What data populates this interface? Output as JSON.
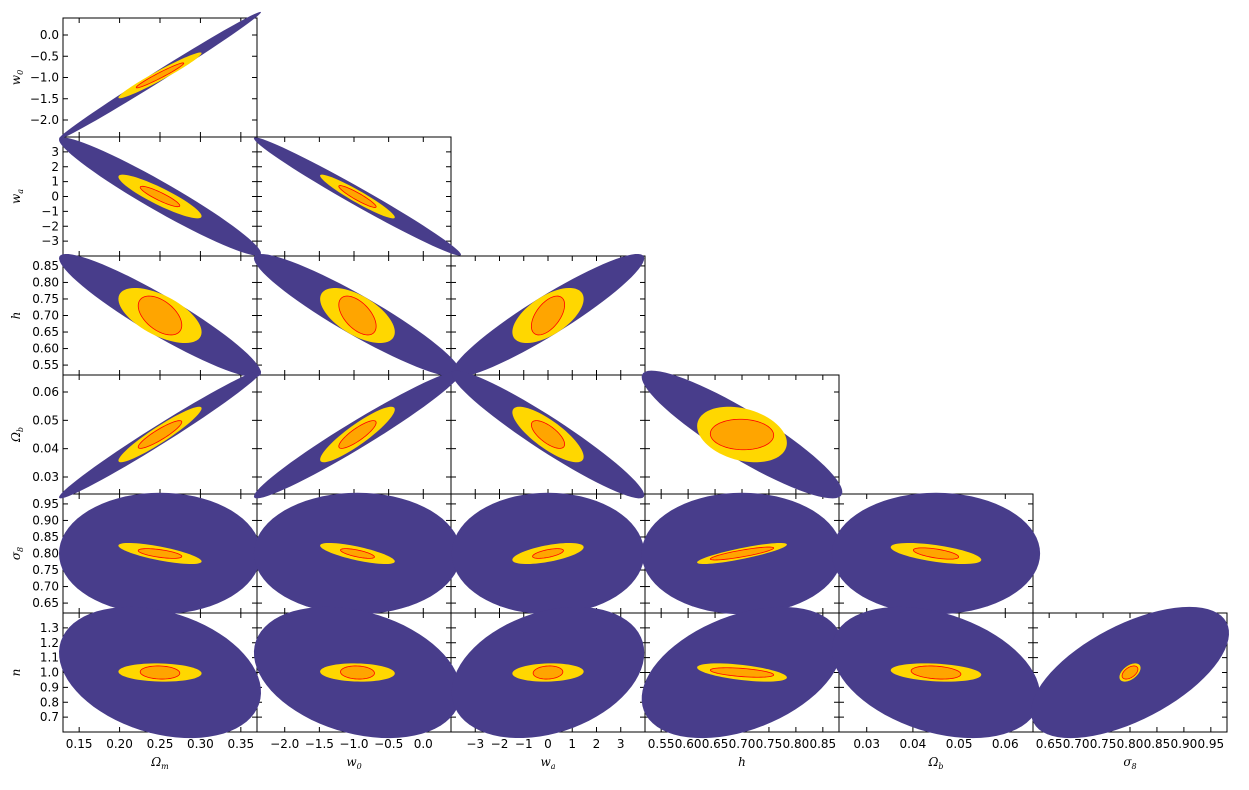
{
  "chart_data": {
    "type": "contour",
    "description_kind": "triangle",
    "colors": {
      "outer": "#483d8b",
      "middle": "#ffd700",
      "inner": "#ffa500",
      "inner_edge": "#ff0000"
    },
    "params": [
      {
        "key": "Om",
        "label": "Ω",
        "sub": "m",
        "range": [
          0.13,
          0.37
        ],
        "ticks": [
          0.15,
          0.2,
          0.25,
          0.3,
          0.35
        ],
        "tick_labels": [
          "0.15",
          "0.20",
          "0.25",
          "0.30",
          "0.35"
        ]
      },
      {
        "key": "w0",
        "label": "w",
        "sub": "0",
        "range": [
          -2.4,
          0.4
        ],
        "ticks": [
          -2.0,
          -1.5,
          -1.0,
          -0.5,
          0.0
        ],
        "tick_labels": [
          "−2.0",
          "−1.5",
          "−1.0",
          "−0.5",
          "0.0"
        ]
      },
      {
        "key": "wa",
        "label": "w",
        "sub": "a",
        "range": [
          -4,
          4
        ],
        "ticks": [
          -3,
          -2,
          -1,
          0,
          1,
          2,
          3
        ],
        "tick_labels": [
          "−3",
          "−2",
          "−1",
          "0",
          "1",
          "2",
          "3"
        ]
      },
      {
        "key": "h",
        "label": "h",
        "sub": "",
        "range": [
          0.52,
          0.88
        ],
        "ticks": [
          0.55,
          0.6,
          0.65,
          0.7,
          0.75,
          0.8,
          0.85
        ],
        "tick_labels": [
          "0.55",
          "0.60",
          "0.65",
          "0.70",
          "0.75",
          "0.80",
          "0.85"
        ]
      },
      {
        "key": "Ob",
        "label": "Ω",
        "sub": "b",
        "range": [
          0.024,
          0.066
        ],
        "ticks": [
          0.03,
          0.04,
          0.05,
          0.06
        ],
        "tick_labels": [
          "0.03",
          "0.04",
          "0.05",
          "0.06"
        ]
      },
      {
        "key": "s8",
        "label": "σ",
        "sub": "8",
        "range": [
          0.62,
          0.98
        ],
        "ticks": [
          0.65,
          0.7,
          0.75,
          0.8,
          0.85,
          0.9,
          0.95
        ],
        "tick_labels": [
          "0.65",
          "0.70",
          "0.75",
          "0.80",
          "0.85",
          "0.90",
          "0.95"
        ]
      },
      {
        "key": "n",
        "label": "n",
        "sub": "",
        "range": [
          0.6,
          1.4
        ],
        "ticks": [
          0.7,
          0.8,
          0.9,
          1.0,
          1.1,
          1.2,
          1.3
        ],
        "tick_labels": [
          "0.7",
          "0.8",
          "0.9",
          "1.0",
          "1.1",
          "1.2",
          "1.3"
        ]
      }
    ],
    "panels": [
      {
        "x": "Om",
        "y": "w0",
        "center": [
          0.25,
          -0.95
        ],
        "outer": {
          "sx": 0.051,
          "sy": 0.61,
          "rho": 0.995
        },
        "middle": {
          "sx": 0.021,
          "sy": 0.22,
          "rho": 0.97
        },
        "inner": {
          "sx": 0.012,
          "sy": 0.12,
          "rho": 0.97
        }
      },
      {
        "x": "Om",
        "y": "wa",
        "center": [
          0.25,
          0.0
        ],
        "outer": {
          "sx": 0.051,
          "sy": 1.62,
          "rho": -0.96
        },
        "middle": {
          "sx": 0.021,
          "sy": 0.6,
          "rho": -0.9
        },
        "inner": {
          "sx": 0.01,
          "sy": 0.28,
          "rho": -0.9
        }
      },
      {
        "x": "w0",
        "y": "wa",
        "center": [
          -0.95,
          0.0
        ],
        "outer": {
          "sx": 0.61,
          "sy": 1.62,
          "rho": -0.985
        },
        "middle": {
          "sx": 0.22,
          "sy": 0.6,
          "rho": -0.95
        },
        "inner": {
          "sx": 0.11,
          "sy": 0.3,
          "rho": -0.93
        }
      },
      {
        "x": "Om",
        "y": "h",
        "center": [
          0.25,
          0.7
        ],
        "outer": {
          "sx": 0.051,
          "sy": 0.076,
          "rho": -0.93
        },
        "middle": {
          "sx": 0.021,
          "sy": 0.034,
          "rho": -0.6
        },
        "inner": {
          "sx": 0.011,
          "sy": 0.024,
          "rho": -0.5
        }
      },
      {
        "x": "w0",
        "y": "h",
        "center": [
          -0.95,
          0.7
        ],
        "outer": {
          "sx": 0.61,
          "sy": 0.076,
          "rho": -0.93
        },
        "middle": {
          "sx": 0.22,
          "sy": 0.034,
          "rho": -0.6
        },
        "inner": {
          "sx": 0.11,
          "sy": 0.024,
          "rho": -0.55
        }
      },
      {
        "x": "wa",
        "y": "h",
        "center": [
          0.0,
          0.7
        ],
        "outer": {
          "sx": 1.62,
          "sy": 0.076,
          "rho": 0.93
        },
        "middle": {
          "sx": 0.6,
          "sy": 0.034,
          "rho": 0.6
        },
        "inner": {
          "sx": 0.28,
          "sy": 0.024,
          "rho": 0.55
        }
      },
      {
        "x": "Om",
        "y": "Ob",
        "center": [
          0.25,
          0.045
        ],
        "outer": {
          "sx": 0.051,
          "sy": 0.0092,
          "rho": 0.985
        },
        "middle": {
          "sx": 0.021,
          "sy": 0.004,
          "rho": 0.94
        },
        "inner": {
          "sx": 0.011,
          "sy": 0.002,
          "rho": 0.9
        }
      },
      {
        "x": "w0",
        "y": "Ob",
        "center": [
          -0.95,
          0.045
        ],
        "outer": {
          "sx": 0.61,
          "sy": 0.0092,
          "rho": 0.97
        },
        "middle": {
          "sx": 0.22,
          "sy": 0.004,
          "rho": 0.9
        },
        "inner": {
          "sx": 0.11,
          "sy": 0.002,
          "rho": 0.85
        }
      },
      {
        "x": "wa",
        "y": "Ob",
        "center": [
          0.0,
          0.045
        ],
        "outer": {
          "sx": 1.62,
          "sy": 0.0092,
          "rho": -0.95
        },
        "middle": {
          "sx": 0.6,
          "sy": 0.004,
          "rho": -0.8
        },
        "inner": {
          "sx": 0.28,
          "sy": 0.002,
          "rho": -0.7
        }
      },
      {
        "x": "h",
        "y": "Ob",
        "center": [
          0.7,
          0.045
        ],
        "outer": {
          "sx": 0.076,
          "sy": 0.0092,
          "rho": -0.9
        },
        "middle": {
          "sx": 0.034,
          "sy": 0.004,
          "rho": -0.3
        },
        "inner": {
          "sx": 0.024,
          "sy": 0.0022,
          "rho": -0.05
        }
      },
      {
        "x": "Om",
        "y": "s8",
        "center": [
          0.25,
          0.8
        ],
        "outer": {
          "sx": 0.051,
          "sy": 0.075,
          "rho": 0.0
        },
        "middle": {
          "sx": 0.021,
          "sy": 0.013,
          "rho": -0.75
        },
        "inner": {
          "sx": 0.011,
          "sy": 0.006,
          "rho": -0.6
        }
      },
      {
        "x": "w0",
        "y": "s8",
        "center": [
          -0.95,
          0.8
        ],
        "outer": {
          "sx": 0.61,
          "sy": 0.075,
          "rho": 0.0
        },
        "middle": {
          "sx": 0.22,
          "sy": 0.013,
          "rho": -0.75
        },
        "inner": {
          "sx": 0.1,
          "sy": 0.006,
          "rho": -0.7
        }
      },
      {
        "x": "wa",
        "y": "s8",
        "center": [
          0.0,
          0.8
        ],
        "outer": {
          "sx": 1.62,
          "sy": 0.075,
          "rho": 0.0
        },
        "middle": {
          "sx": 0.6,
          "sy": 0.013,
          "rho": 0.6
        },
        "inner": {
          "sx": 0.26,
          "sy": 0.006,
          "rho": 0.6
        }
      },
      {
        "x": "h",
        "y": "s8",
        "center": [
          0.7,
          0.8
        ],
        "outer": {
          "sx": 0.076,
          "sy": 0.075,
          "rho": 0.0
        },
        "middle": {
          "sx": 0.034,
          "sy": 0.013,
          "rho": 0.85
        },
        "inner": {
          "sx": 0.024,
          "sy": 0.008,
          "rho": 0.85
        }
      },
      {
        "x": "Ob",
        "y": "s8",
        "center": [
          0.045,
          0.8
        ],
        "outer": {
          "sx": 0.0092,
          "sy": 0.075,
          "rho": 0.0
        },
        "middle": {
          "sx": 0.004,
          "sy": 0.013,
          "rho": -0.6
        },
        "inner": {
          "sx": 0.002,
          "sy": 0.007,
          "rho": -0.6
        }
      },
      {
        "x": "Om",
        "y": "n",
        "center": [
          0.25,
          1.0
        ],
        "outer": {
          "sx": 0.051,
          "sy": 0.18,
          "rho": -0.3
        },
        "middle": {
          "sx": 0.021,
          "sy": 0.025,
          "rho": -0.1
        },
        "inner": {
          "sx": 0.01,
          "sy": 0.018,
          "rho": -0.1
        }
      },
      {
        "x": "w0",
        "y": "n",
        "center": [
          -0.95,
          1.0
        ],
        "outer": {
          "sx": 0.61,
          "sy": 0.18,
          "rho": -0.3
        },
        "middle": {
          "sx": 0.22,
          "sy": 0.025,
          "rho": -0.1
        },
        "inner": {
          "sx": 0.1,
          "sy": 0.018,
          "rho": -0.1
        }
      },
      {
        "x": "wa",
        "y": "n",
        "center": [
          0.0,
          1.0
        ],
        "outer": {
          "sx": 1.62,
          "sy": 0.18,
          "rho": 0.3
        },
        "middle": {
          "sx": 0.6,
          "sy": 0.025,
          "rho": 0.1
        },
        "inner": {
          "sx": 0.25,
          "sy": 0.018,
          "rho": 0.1
        }
      },
      {
        "x": "h",
        "y": "n",
        "center": [
          0.7,
          1.0
        ],
        "outer": {
          "sx": 0.076,
          "sy": 0.18,
          "rho": 0.4
        },
        "middle": {
          "sx": 0.034,
          "sy": 0.025,
          "rho": -0.55
        },
        "inner": {
          "sx": 0.024,
          "sy": 0.013,
          "rho": -0.5
        }
      },
      {
        "x": "Ob",
        "y": "n",
        "center": [
          0.045,
          1.0
        ],
        "outer": {
          "sx": 0.0092,
          "sy": 0.18,
          "rho": -0.35
        },
        "middle": {
          "sx": 0.004,
          "sy": 0.025,
          "rho": -0.25
        },
        "inner": {
          "sx": 0.0022,
          "sy": 0.018,
          "rho": -0.25
        }
      },
      {
        "x": "s8",
        "y": "n",
        "center": [
          0.8,
          1.0
        ],
        "outer": {
          "sx": 0.075,
          "sy": 0.18,
          "rho": 0.6
        },
        "middle": {
          "sx": 0.008,
          "sy": 0.025,
          "rho": 0.5
        },
        "inner": {
          "sx": 0.006,
          "sy": 0.018,
          "rho": 0.5
        }
      }
    ]
  }
}
